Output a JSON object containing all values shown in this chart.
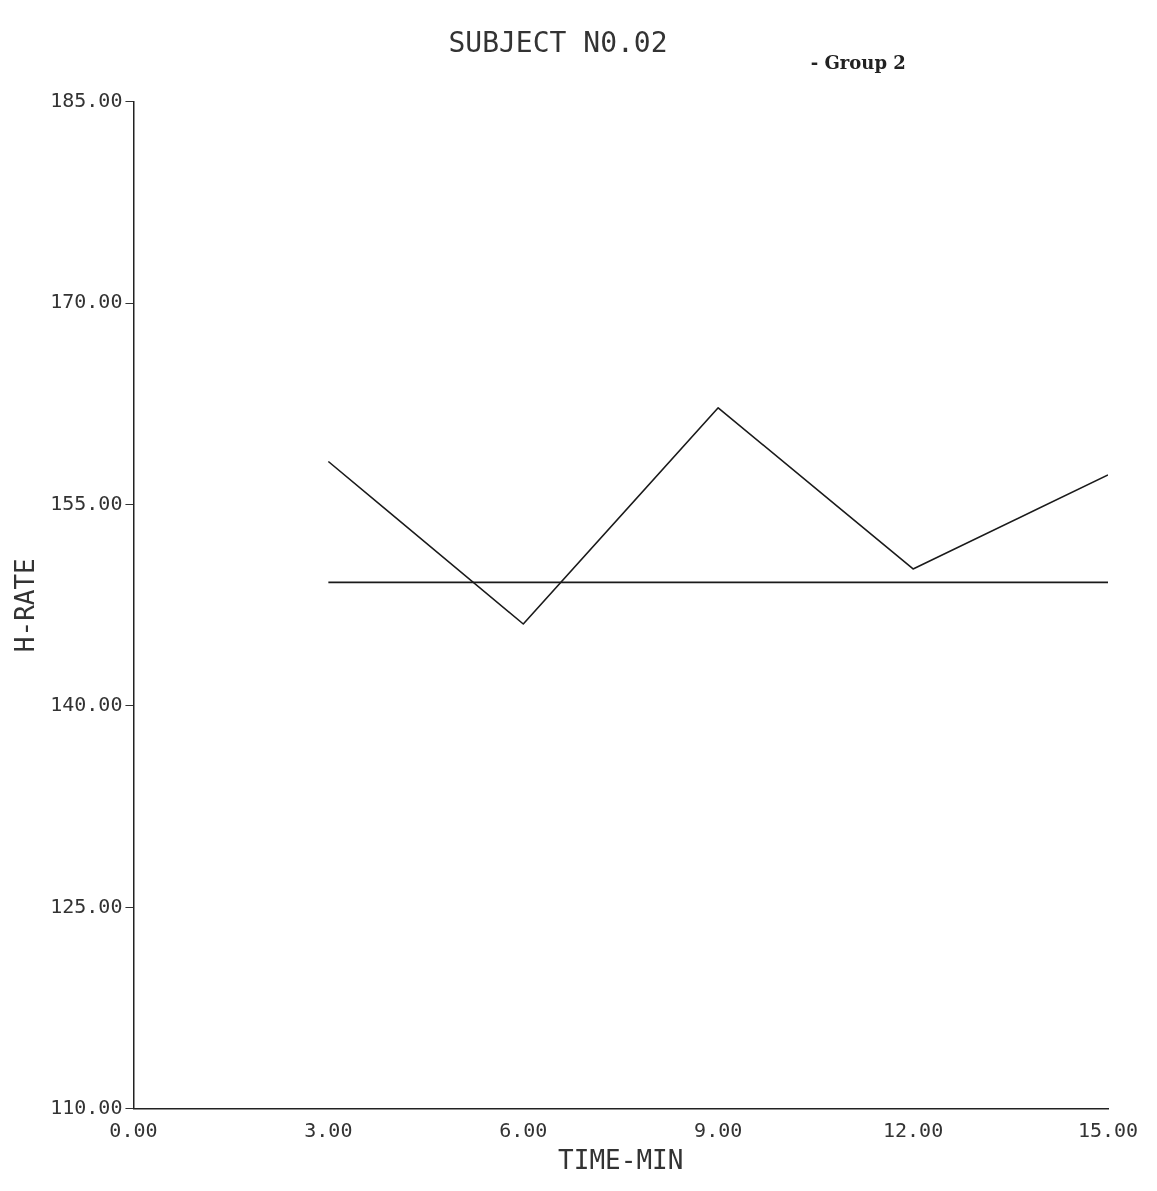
{
  "chart_data": {
    "type": "line",
    "title": "SUBJECT N0.02",
    "annotations": [
      "- Group 2"
    ],
    "xlabel": "TIME-MIN",
    "ylabel": "H-RATE",
    "x": [
      3,
      6,
      9,
      12,
      15
    ],
    "series": [
      {
        "color": "#1a1a1a",
        "values": [
          158.2,
          146.1,
          162.2,
          150.2,
          157.2
        ]
      },
      {
        "color": "#1a1a1a",
        "x": [
          3,
          15
        ],
        "values": [
          149.2,
          149.2
        ]
      }
    ],
    "xlim": [
      0,
      15
    ],
    "xticks": [
      {
        "value": 0,
        "label": "0.00"
      },
      {
        "value": 3,
        "label": "3.00"
      },
      {
        "value": 6,
        "label": "6.00"
      },
      {
        "value": 9,
        "label": "9.00"
      },
      {
        "value": 12,
        "label": "12.00"
      },
      {
        "value": 15,
        "label": "15.00"
      }
    ],
    "ylim": [
      110,
      185
    ],
    "yticks": [
      {
        "value": 110,
        "label": "110.00"
      },
      {
        "value": 125,
        "label": "125.00"
      },
      {
        "value": 140,
        "label": "140.00"
      },
      {
        "value": 155,
        "label": "155.00"
      },
      {
        "value": 170,
        "label": "170.00"
      },
      {
        "value": 185,
        "label": "185.00"
      }
    ],
    "grid": false,
    "legend": false,
    "marker": "none",
    "line_style": "solid"
  }
}
